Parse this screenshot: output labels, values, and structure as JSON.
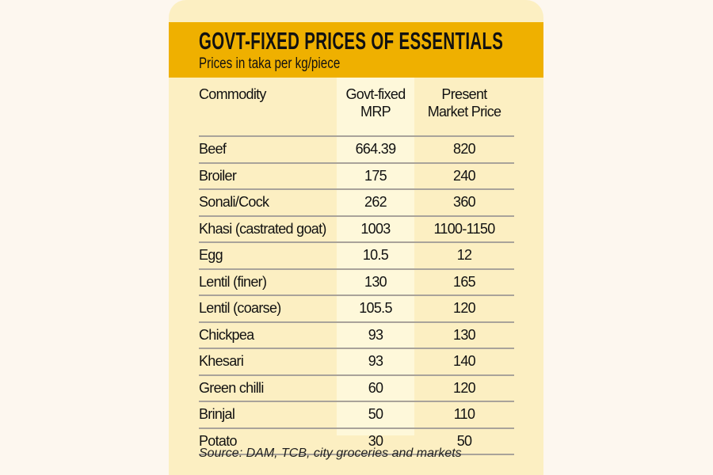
{
  "colors": {
    "page": "#fdf7ef",
    "card": "#fcefc2",
    "band": "#efb000",
    "highlight_column": "#fef8da",
    "rule": "#a9a39a"
  },
  "chart_data": {
    "type": "table",
    "title": "GOVT-FIXED PRICES OF ESSENTIALS",
    "subtitle": "Prices in taka per kg/piece",
    "columns": [
      "Commodity",
      "Govt-fixed MRP",
      "Present Market Price"
    ],
    "rows": [
      [
        "Beef",
        "664.39",
        "820"
      ],
      [
        "Broiler",
        "175",
        "240"
      ],
      [
        "Sonali/Cock",
        "262",
        "360"
      ],
      [
        "Khasi (castrated goat)",
        "1003",
        "1100-1150"
      ],
      [
        "Egg",
        "10.5",
        "12"
      ],
      [
        "Lentil (finer)",
        "130",
        "165"
      ],
      [
        "Lentil (coarse)",
        "105.5",
        "120"
      ],
      [
        "Chickpea",
        "93",
        "130"
      ],
      [
        "Khesari",
        "93",
        "140"
      ],
      [
        "Green chilli",
        "60",
        "120"
      ],
      [
        "Brinjal",
        "50",
        "110"
      ],
      [
        "Potato",
        "30",
        "50"
      ]
    ],
    "source": "Source: DAM, TCB, city groceries and markets"
  }
}
